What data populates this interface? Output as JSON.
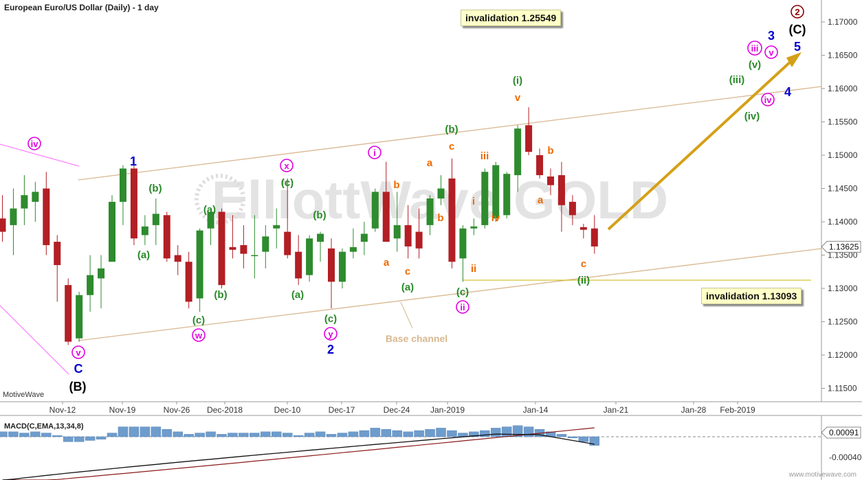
{
  "header": {
    "title": "European Euro/US Dollar (Daily) - 1 day"
  },
  "invalidation_upper": "invalidation 1.25549",
  "invalidation_lower": "invalidation 1.13093",
  "brand": "MotiveWave",
  "watermark": "ElliottWave GOLD",
  "channel_label": "Base channel",
  "price_tag": "1.13625",
  "macd_tag": "0.00091",
  "macd_title": "MACD(C,EMA,13,34,8)",
  "site_footer": "www.motivewave.com",
  "colors": {
    "bull": "#2e8b2e",
    "bear": "#b21f24",
    "channel": "#d8b890",
    "arrow": "#d4a017",
    "magenta": "#e000e0",
    "blue": "#0000cc",
    "green": "#2a8a2a",
    "orange": "#ee6a00",
    "darkred": "#8b0000",
    "macd_hist": "#6e9ccc"
  },
  "chart_data": {
    "type": "candlestick",
    "y_ticks": [
      "1.17000",
      "1.16500",
      "1.16000",
      "1.15500",
      "1.15000",
      "1.14500",
      "1.14000",
      "1.13500",
      "1.13000",
      "1.12500",
      "1.12000",
      "1.11500"
    ],
    "x_ticks": [
      "Nov-12",
      "Nov-19",
      "Nov-26",
      "Dec-2018",
      "Dec-10",
      "Dec-17",
      "Dec-24",
      "Jan-2019",
      "Jan-14",
      "Jan-21",
      "Jan-28",
      "Feb-2019"
    ],
    "ylim": [
      1.1125,
      1.1725
    ],
    "candles": [
      {
        "o": 1.1405,
        "h": 1.144,
        "l": 1.137,
        "c": 1.1385
      },
      {
        "o": 1.1395,
        "h": 1.145,
        "l": 1.135,
        "c": 1.142
      },
      {
        "o": 1.142,
        "h": 1.147,
        "l": 1.1395,
        "c": 1.144
      },
      {
        "o": 1.143,
        "h": 1.146,
        "l": 1.14,
        "c": 1.1445
      },
      {
        "o": 1.145,
        "h": 1.1475,
        "l": 1.135,
        "c": 1.1365
      },
      {
        "o": 1.137,
        "h": 1.138,
        "l": 1.128,
        "c": 1.1335
      },
      {
        "o": 1.1305,
        "h": 1.1315,
        "l": 1.1215,
        "c": 1.122
      },
      {
        "o": 1.1225,
        "h": 1.1295,
        "l": 1.122,
        "c": 1.129
      },
      {
        "o": 1.129,
        "h": 1.135,
        "l": 1.1265,
        "c": 1.132
      },
      {
        "o": 1.1315,
        "h": 1.135,
        "l": 1.127,
        "c": 1.133
      },
      {
        "o": 1.134,
        "h": 1.144,
        "l": 1.134,
        "c": 1.143
      },
      {
        "o": 1.143,
        "h": 1.1485,
        "l": 1.1395,
        "c": 1.148
      },
      {
        "o": 1.148,
        "h": 1.1495,
        "l": 1.1365,
        "c": 1.1375
      },
      {
        "o": 1.138,
        "h": 1.141,
        "l": 1.1365,
        "c": 1.1393
      },
      {
        "o": 1.1395,
        "h": 1.1435,
        "l": 1.1365,
        "c": 1.1412
      },
      {
        "o": 1.141,
        "h": 1.1415,
        "l": 1.134,
        "c": 1.1345
      },
      {
        "o": 1.135,
        "h": 1.1365,
        "l": 1.132,
        "c": 1.134
      },
      {
        "o": 1.134,
        "h": 1.1355,
        "l": 1.127,
        "c": 1.128
      },
      {
        "o": 1.1285,
        "h": 1.139,
        "l": 1.1265,
        "c": 1.1387
      },
      {
        "o": 1.139,
        "h": 1.1418,
        "l": 1.1365,
        "c": 1.1415
      },
      {
        "o": 1.1415,
        "h": 1.142,
        "l": 1.13,
        "c": 1.1305
      },
      {
        "o": 1.1362,
        "h": 1.141,
        "l": 1.1345,
        "c": 1.1358
      },
      {
        "o": 1.1365,
        "h": 1.1395,
        "l": 1.133,
        "c": 1.1352
      },
      {
        "o": 1.135,
        "h": 1.141,
        "l": 1.1315,
        "c": 1.135
      },
      {
        "o": 1.1355,
        "h": 1.1395,
        "l": 1.133,
        "c": 1.1378
      },
      {
        "o": 1.139,
        "h": 1.142,
        "l": 1.136,
        "c": 1.1395
      },
      {
        "o": 1.1385,
        "h": 1.1465,
        "l": 1.1345,
        "c": 1.135
      },
      {
        "o": 1.1355,
        "h": 1.138,
        "l": 1.1305,
        "c": 1.1315
      },
      {
        "o": 1.132,
        "h": 1.138,
        "l": 1.131,
        "c": 1.1375
      },
      {
        "o": 1.137,
        "h": 1.1385,
        "l": 1.134,
        "c": 1.1382
      },
      {
        "o": 1.136,
        "h": 1.1375,
        "l": 1.127,
        "c": 1.131
      },
      {
        "o": 1.131,
        "h": 1.136,
        "l": 1.13,
        "c": 1.1355
      },
      {
        "o": 1.1355,
        "h": 1.139,
        "l": 1.1345,
        "c": 1.1362
      },
      {
        "o": 1.137,
        "h": 1.14,
        "l": 1.135,
        "c": 1.1382
      },
      {
        "o": 1.139,
        "h": 1.145,
        "l": 1.1385,
        "c": 1.1445
      },
      {
        "o": 1.1445,
        "h": 1.149,
        "l": 1.1375,
        "c": 1.137
      },
      {
        "o": 1.1375,
        "h": 1.1445,
        "l": 1.1355,
        "c": 1.1395
      },
      {
        "o": 1.1395,
        "h": 1.1425,
        "l": 1.1345,
        "c": 1.1363
      },
      {
        "o": 1.1385,
        "h": 1.142,
        "l": 1.1345,
        "c": 1.136
      },
      {
        "o": 1.1395,
        "h": 1.144,
        "l": 1.138,
        "c": 1.1435
      },
      {
        "o": 1.1435,
        "h": 1.147,
        "l": 1.1425,
        "c": 1.145
      },
      {
        "o": 1.1465,
        "h": 1.1495,
        "l": 1.133,
        "c": 1.134
      },
      {
        "o": 1.1345,
        "h": 1.1395,
        "l": 1.131,
        "c": 1.139
      },
      {
        "o": 1.139,
        "h": 1.1405,
        "l": 1.138,
        "c": 1.1393
      },
      {
        "o": 1.1395,
        "h": 1.148,
        "l": 1.139,
        "c": 1.1475
      },
      {
        "o": 1.1405,
        "h": 1.149,
        "l": 1.14,
        "c": 1.1485
      },
      {
        "o": 1.141,
        "h": 1.1475,
        "l": 1.1405,
        "c": 1.1472
      },
      {
        "o": 1.147,
        "h": 1.1545,
        "l": 1.1445,
        "c": 1.154
      },
      {
        "o": 1.1545,
        "h": 1.1572,
        "l": 1.15,
        "c": 1.1505
      },
      {
        "o": 1.15,
        "h": 1.151,
        "l": 1.1465,
        "c": 1.147
      },
      {
        "o": 1.1468,
        "h": 1.148,
        "l": 1.144,
        "c": 1.1455
      },
      {
        "o": 1.147,
        "h": 1.149,
        "l": 1.1385,
        "c": 1.1425
      },
      {
        "o": 1.143,
        "h": 1.144,
        "l": 1.1395,
        "c": 1.141
      },
      {
        "o": 1.1392,
        "h": 1.1397,
        "l": 1.1375,
        "c": 1.1388
      },
      {
        "o": 1.139,
        "h": 1.141,
        "l": 1.1352,
        "c": 1.1363
      }
    ],
    "wave_labels": [
      {
        "text": "iv",
        "kind": "circle",
        "color": "magenta",
        "x": 50,
        "y": 209
      },
      {
        "text": "v",
        "kind": "circle",
        "color": "magenta",
        "x": 114,
        "y": 513
      },
      {
        "text": "C",
        "kind": "plain",
        "color": "blue",
        "x": 114,
        "y": 537
      },
      {
        "text": "(B)",
        "kind": "plain",
        "color": "black",
        "x": 113,
        "y": 563
      },
      {
        "text": "1",
        "kind": "plain",
        "color": "blue",
        "x": 194,
        "y": 235
      },
      {
        "text": "(b)",
        "kind": "plain",
        "color": "green",
        "x": 226,
        "y": 273
      },
      {
        "text": "(a)",
        "kind": "plain",
        "color": "green",
        "x": 209,
        "y": 370
      },
      {
        "text": "(c)",
        "kind": "plain",
        "color": "green",
        "x": 289,
        "y": 465
      },
      {
        "text": "w",
        "kind": "circle",
        "color": "magenta",
        "x": 289,
        "y": 488
      },
      {
        "text": "(a)",
        "kind": "plain",
        "color": "green",
        "x": 305,
        "y": 304
      },
      {
        "text": "(b)",
        "kind": "plain",
        "color": "green",
        "x": 321,
        "y": 428
      },
      {
        "text": "x",
        "kind": "circle",
        "color": "magenta",
        "x": 417,
        "y": 241
      },
      {
        "text": "(c)",
        "kind": "plain",
        "color": "green",
        "x": 418,
        "y": 265
      },
      {
        "text": "(b)",
        "kind": "plain",
        "color": "green",
        "x": 465,
        "y": 312
      },
      {
        "text": "(a)",
        "kind": "plain",
        "color": "green",
        "x": 433,
        "y": 428
      },
      {
        "text": "(c)",
        "kind": "plain",
        "color": "green",
        "x": 481,
        "y": 463
      },
      {
        "text": "y",
        "kind": "circle",
        "color": "magenta",
        "x": 481,
        "y": 486
      },
      {
        "text": "2",
        "kind": "plain",
        "color": "blue",
        "x": 481,
        "y": 509
      },
      {
        "text": "i",
        "kind": "circle",
        "color": "magenta",
        "x": 545,
        "y": 222
      },
      {
        "text": "b",
        "kind": "plain",
        "color": "orange",
        "x": 577,
        "y": 268
      },
      {
        "text": "a",
        "kind": "plain",
        "color": "orange",
        "x": 562,
        "y": 381
      },
      {
        "text": "c",
        "kind": "plain",
        "color": "orange",
        "x": 593,
        "y": 394
      },
      {
        "text": "(a)",
        "kind": "plain",
        "color": "green",
        "x": 593,
        "y": 417
      },
      {
        "text": "a",
        "kind": "plain",
        "color": "orange",
        "x": 625,
        "y": 236
      },
      {
        "text": "b",
        "kind": "plain",
        "color": "orange",
        "x": 641,
        "y": 316
      },
      {
        "text": "(b)",
        "kind": "plain",
        "color": "green",
        "x": 657,
        "y": 187
      },
      {
        "text": "c",
        "kind": "plain",
        "color": "orange",
        "x": 657,
        "y": 212
      },
      {
        "text": "(c)",
        "kind": "plain",
        "color": "green",
        "x": 673,
        "y": 424
      },
      {
        "text": "ii",
        "kind": "circle",
        "color": "magenta",
        "x": 673,
        "y": 447
      },
      {
        "text": "i",
        "kind": "plain",
        "color": "orange",
        "x": 689,
        "y": 292
      },
      {
        "text": "ii",
        "kind": "plain",
        "color": "orange",
        "x": 689,
        "y": 390
      },
      {
        "text": "iii",
        "kind": "plain",
        "color": "orange",
        "x": 705,
        "y": 226
      },
      {
        "text": "iv",
        "kind": "plain",
        "color": "orange",
        "x": 721,
        "y": 316
      },
      {
        "text": "(i)",
        "kind": "plain",
        "color": "green",
        "x": 753,
        "y": 116
      },
      {
        "text": "v",
        "kind": "plain",
        "color": "orange",
        "x": 753,
        "y": 141
      },
      {
        "text": "b",
        "kind": "plain",
        "color": "orange",
        "x": 801,
        "y": 218
      },
      {
        "text": "a",
        "kind": "plain",
        "color": "orange",
        "x": 786,
        "y": 290
      },
      {
        "text": "c",
        "kind": "plain",
        "color": "orange",
        "x": 849,
        "y": 383
      },
      {
        "text": "(ii)",
        "kind": "plain",
        "color": "green",
        "x": 849,
        "y": 407
      },
      {
        "text": "(iii)",
        "kind": "plain",
        "color": "green",
        "x": 1072,
        "y": 115
      },
      {
        "text": "(iv)",
        "kind": "plain",
        "color": "green",
        "x": 1094,
        "y": 168
      },
      {
        "text": "(v)",
        "kind": "plain",
        "color": "green",
        "x": 1098,
        "y": 93
      },
      {
        "text": "iii",
        "kind": "circle",
        "color": "magenta",
        "x": 1098,
        "y": 70
      },
      {
        "text": "v",
        "kind": "circle",
        "color": "magenta",
        "x": 1122,
        "y": 76
      },
      {
        "text": "iv",
        "kind": "circle",
        "color": "magenta",
        "x": 1117,
        "y": 145
      },
      {
        "text": "3",
        "kind": "plain",
        "color": "blue",
        "x": 1122,
        "y": 52
      },
      {
        "text": "5",
        "kind": "plain",
        "color": "blue",
        "x": 1160,
        "y": 68
      },
      {
        "text": "4",
        "kind": "plain",
        "color": "blue",
        "x": 1146,
        "y": 134
      },
      {
        "text": "(C)",
        "kind": "plain",
        "color": "black",
        "x": 1160,
        "y": 43
      },
      {
        "text": "2",
        "kind": "circle",
        "color": "darkred",
        "x": 1160,
        "y": 17
      }
    ],
    "macd_hist": [
      0.0004,
      0.0004,
      0.0003,
      0.0004,
      0.0003,
      0.0001,
      -0.0004,
      -0.0004,
      -0.0003,
      -0.0002,
      0.0003,
      0.0008,
      0.0008,
      0.0008,
      0.0008,
      0.0006,
      0.0004,
      0.0002,
      0.0003,
      0.0004,
      0.0002,
      0.0003,
      0.0003,
      0.0003,
      0.0004,
      0.0004,
      0.0003,
      0.0001,
      0.0003,
      0.0004,
      0.0002,
      0.0003,
      0.0004,
      0.0005,
      0.0007,
      0.0006,
      0.0005,
      0.0004,
      0.0005,
      0.0006,
      0.0007,
      0.0005,
      0.0003,
      0.0004,
      0.0005,
      0.0007,
      0.0008,
      0.0009,
      0.0008,
      0.0006,
      0.0004,
      0.0002,
      -0.0001,
      -0.0004,
      -0.0007
    ],
    "macd_ticks": [
      "0.00091",
      "-0.00040"
    ]
  }
}
